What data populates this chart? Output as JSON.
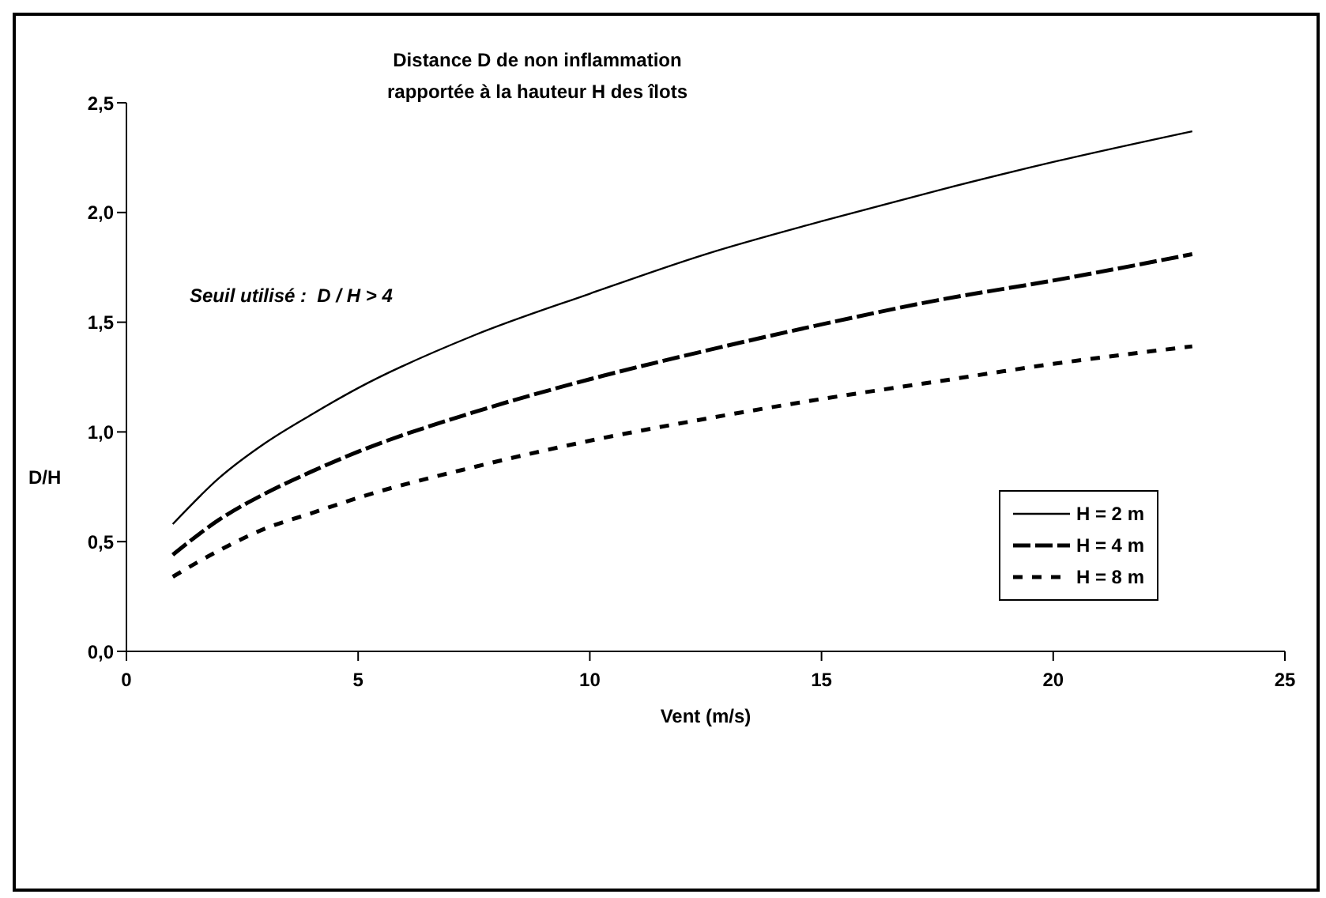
{
  "chart_data": {
    "type": "line",
    "title": "Distance D de non inflammation\nrapportée à la hauteur H des îlots",
    "xlabel": "Vent (m/s)",
    "ylabel": "D/H",
    "annotations": [
      "Seuil utilisé :  D / H > 4"
    ],
    "x": [
      1,
      2,
      3,
      4,
      5,
      7.5,
      10,
      12.5,
      15,
      17.5,
      20,
      23
    ],
    "series": [
      {
        "name": "H = 2 m",
        "color": "#000000",
        "line_style": "solid",
        "values": [
          0.58,
          0.79,
          0.95,
          1.08,
          1.2,
          1.44,
          1.63,
          1.81,
          1.96,
          2.1,
          2.23,
          2.37
        ]
      },
      {
        "name": "H = 4 m",
        "color": "#000000",
        "line_style": "dashed",
        "values": [
          0.44,
          0.6,
          0.72,
          0.82,
          0.91,
          1.09,
          1.24,
          1.37,
          1.49,
          1.6,
          1.69,
          1.81
        ]
      },
      {
        "name": "H = 8 m",
        "color": "#000000",
        "line_style": "dotted",
        "values": [
          0.34,
          0.46,
          0.56,
          0.63,
          0.7,
          0.84,
          0.96,
          1.06,
          1.15,
          1.23,
          1.31,
          1.39
        ]
      }
    ],
    "xlim": [
      0,
      25
    ],
    "xticks": [
      0,
      5,
      10,
      15,
      20,
      25
    ],
    "ylim": [
      0,
      2.5
    ],
    "yticks": [
      {
        "value": 0,
        "label": "0,0"
      },
      {
        "value": 0.5,
        "label": "0,5"
      },
      {
        "value": 1,
        "label": "1,0"
      },
      {
        "value": 1.5,
        "label": "1,5"
      },
      {
        "value": 2,
        "label": "2,0"
      },
      {
        "value": 2.5,
        "label": "2,5"
      }
    ],
    "grid": false,
    "legend": "right",
    "marker": "none"
  }
}
